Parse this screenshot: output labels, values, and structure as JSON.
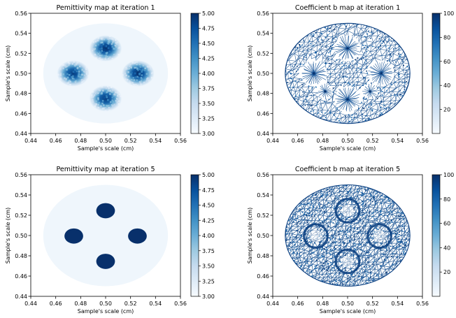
{
  "chart_data": [
    {
      "type": "heatmap",
      "title": "Pemittivity map at iteration 1",
      "xlabel": "Sample's scale (cm)",
      "ylabel": "Sample's scale (cm)",
      "xlim": [
        0.44,
        0.56
      ],
      "ylim": [
        0.44,
        0.56
      ],
      "xticks": [
        "0.44",
        "0.46",
        "0.48",
        "0.50",
        "0.52",
        "0.54",
        "0.56"
      ],
      "yticks": [
        "0.44",
        "0.46",
        "0.48",
        "0.50",
        "0.52",
        "0.54",
        "0.56"
      ],
      "colorbar": {
        "range": [
          3.0,
          5.0
        ],
        "ticks": [
          "3.00",
          "3.25",
          "3.50",
          "3.75",
          "4.00",
          "4.25",
          "4.50",
          "4.75",
          "5.00"
        ],
        "colormap": "Blues"
      },
      "domain": {
        "center": [
          0.5,
          0.5
        ],
        "radius": 0.05
      },
      "inclusions": [
        {
          "x": 0.5,
          "y": 0.525,
          "r": 0.009,
          "peak": 5.0
        },
        {
          "x": 0.474,
          "y": 0.5,
          "r": 0.009,
          "peak": 4.9
        },
        {
          "x": 0.526,
          "y": 0.5,
          "r": 0.009,
          "peak": 5.0
        },
        {
          "x": 0.5,
          "y": 0.475,
          "r": 0.009,
          "peak": 4.9
        }
      ],
      "sharp": false
    },
    {
      "type": "heatmap",
      "title": "Coefficient b map at iteration 1",
      "xlabel": "Sample's scale (cm)",
      "ylabel": "Sample's scale (cm)",
      "xlim": [
        0.44,
        0.56
      ],
      "ylim": [
        0.44,
        0.56
      ],
      "xticks": [
        "0.44",
        "0.46",
        "0.48",
        "0.50",
        "0.52",
        "0.54",
        "0.56"
      ],
      "yticks": [
        "0.44",
        "0.46",
        "0.48",
        "0.50",
        "0.52",
        "0.54",
        "0.56"
      ],
      "colorbar": {
        "range": [
          0,
          100
        ],
        "ticks": [
          "20",
          "40",
          "60",
          "80",
          "100"
        ],
        "colormap": "Blues"
      },
      "domain": {
        "center": [
          0.5,
          0.5
        ],
        "radius": 0.05
      },
      "inclusions": [
        {
          "x": 0.5,
          "y": 0.525,
          "r": 0.014
        },
        {
          "x": 0.473,
          "y": 0.5,
          "r": 0.014
        },
        {
          "x": 0.527,
          "y": 0.5,
          "r": 0.014
        },
        {
          "x": 0.5,
          "y": 0.474,
          "r": 0.014
        },
        {
          "x": 0.482,
          "y": 0.482,
          "r": 0.008
        },
        {
          "x": 0.518,
          "y": 0.482,
          "r": 0.008
        }
      ],
      "style": "mesh-spokes"
    },
    {
      "type": "heatmap",
      "title": "Pemittivity map at iteration 5",
      "xlabel": "Sample's scale (cm)",
      "ylabel": "Sample's scale (cm)",
      "xlim": [
        0.44,
        0.56
      ],
      "ylim": [
        0.44,
        0.56
      ],
      "xticks": [
        "0.44",
        "0.46",
        "0.48",
        "0.50",
        "0.52",
        "0.54",
        "0.56"
      ],
      "yticks": [
        "0.44",
        "0.46",
        "0.48",
        "0.50",
        "0.52",
        "0.54",
        "0.56"
      ],
      "colorbar": {
        "range": [
          3.0,
          5.0
        ],
        "ticks": [
          "3.00",
          "3.25",
          "3.50",
          "3.75",
          "4.00",
          "4.25",
          "4.50",
          "4.75",
          "5.00"
        ],
        "colormap": "Blues"
      },
      "domain": {
        "center": [
          0.5,
          0.5
        ],
        "radius": 0.05
      },
      "inclusions": [
        {
          "x": 0.5,
          "y": 0.5245,
          "r": 0.0075,
          "peak": 5.0
        },
        {
          "x": 0.4745,
          "y": 0.4995,
          "r": 0.0075,
          "peak": 5.0
        },
        {
          "x": 0.5255,
          "y": 0.4995,
          "r": 0.0075,
          "peak": 5.0
        },
        {
          "x": 0.5,
          "y": 0.4745,
          "r": 0.0075,
          "peak": 5.0
        }
      ],
      "sharp": true
    },
    {
      "type": "heatmap",
      "title": "Coefficient b map at iteration 5",
      "xlabel": "Sample's scale (cm)",
      "ylabel": "Sample's scale (cm)",
      "xlim": [
        0.44,
        0.56
      ],
      "ylim": [
        0.44,
        0.56
      ],
      "xticks": [
        "0.44",
        "0.46",
        "0.48",
        "0.50",
        "0.52",
        "0.54",
        "0.56"
      ],
      "yticks": [
        "0.44",
        "0.46",
        "0.48",
        "0.50",
        "0.52",
        "0.54",
        "0.56"
      ],
      "colorbar": {
        "range": [
          0,
          100
        ],
        "ticks": [
          "20",
          "40",
          "60",
          "80",
          "100"
        ],
        "colormap": "Blues"
      },
      "domain": {
        "center": [
          0.5,
          0.5
        ],
        "radius": 0.05
      },
      "inclusions": [
        {
          "x": 0.5,
          "y": 0.5245,
          "r": 0.009
        },
        {
          "x": 0.4745,
          "y": 0.4995,
          "r": 0.009
        },
        {
          "x": 0.5255,
          "y": 0.4995,
          "r": 0.009
        },
        {
          "x": 0.5,
          "y": 0.4745,
          "r": 0.009
        }
      ],
      "style": "mesh-rings"
    }
  ]
}
